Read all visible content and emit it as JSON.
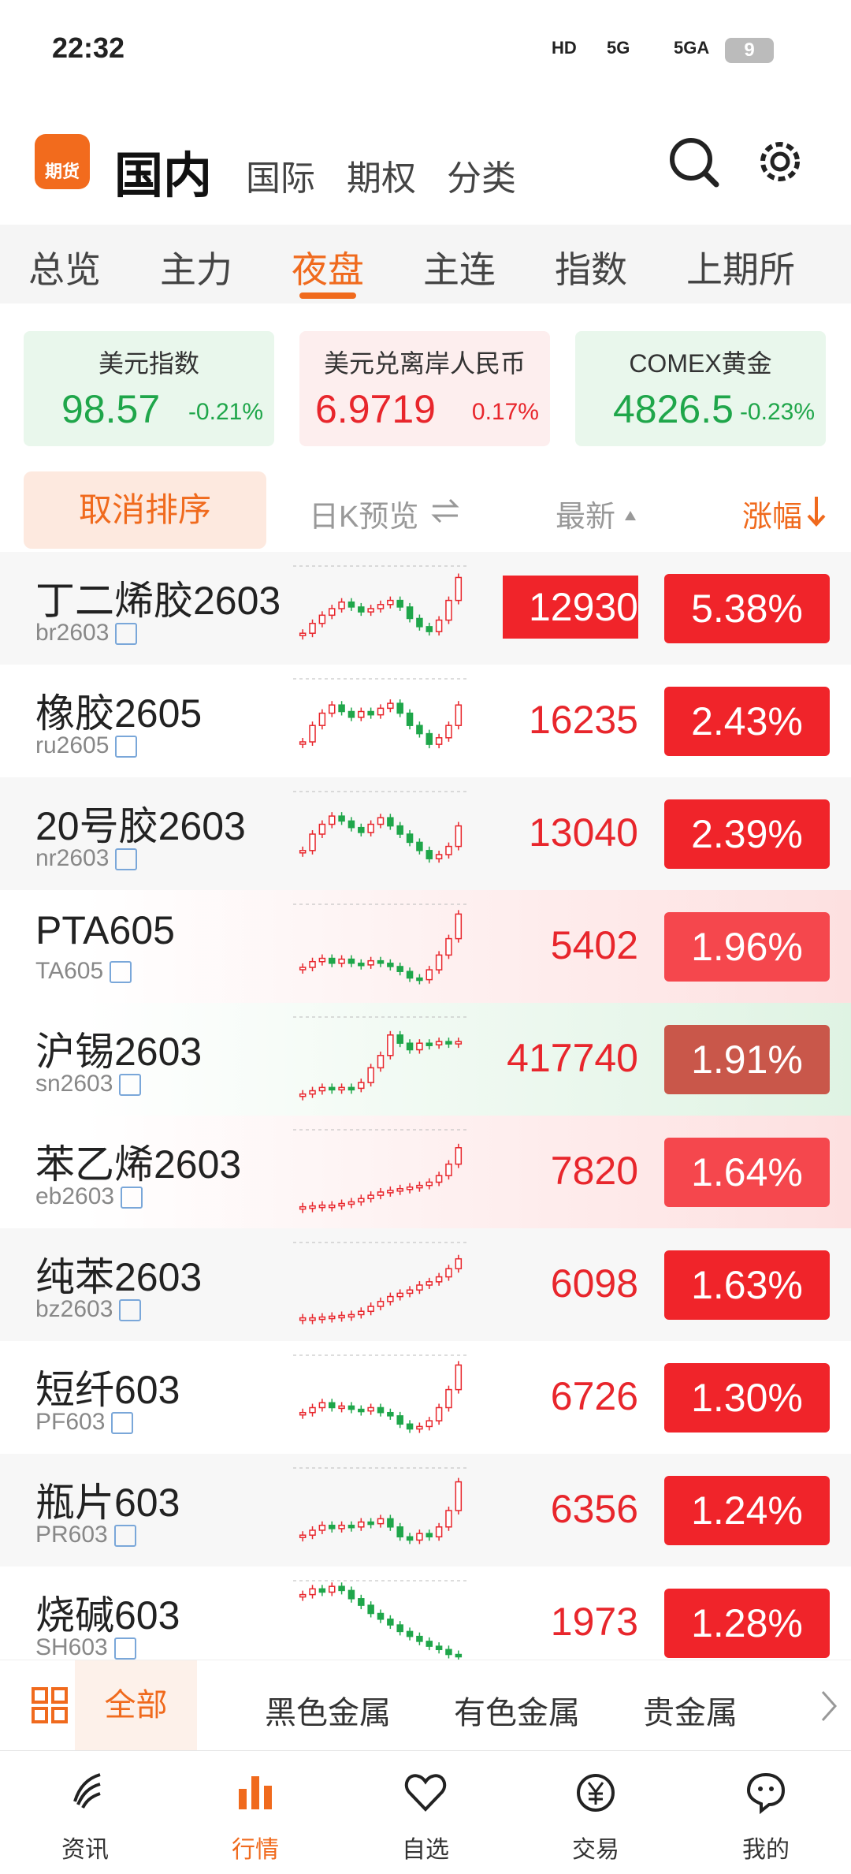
{
  "status_bar": {
    "time": "22:32",
    "network": [
      "HD",
      "5G",
      "5GA"
    ],
    "battery": "9"
  },
  "header": {
    "logo": "期货",
    "tabs": [
      "国内",
      "国际",
      "期权",
      "分类"
    ],
    "active": 0
  },
  "subtabs": {
    "items": [
      "总览",
      "主力",
      "夜盘",
      "主连",
      "指数",
      "上期所"
    ],
    "active": 2
  },
  "cards": [
    {
      "name": "美元指数",
      "value": "98.57",
      "change": "-0.21%",
      "tone": "green"
    },
    {
      "name": "美元兑离岸人民币",
      "value": "6.9719",
      "change": "0.17%",
      "tone": "red"
    },
    {
      "name": "COMEX黄金",
      "value": "4826.5",
      "change": "-0.23%",
      "tone": "green"
    }
  ],
  "sort_bar": {
    "cancel": "取消排序",
    "kline": "日K预览",
    "latest": "最新",
    "change": "涨幅"
  },
  "rows": [
    {
      "name": "丁二烯胶2603",
      "code": "br2603",
      "price": "12930",
      "change": "5.38%",
      "price_box": true,
      "badge_color": "#f0242a",
      "kline": [
        20,
        32,
        42,
        50,
        58,
        52,
        46,
        50,
        55,
        60,
        52,
        38,
        28,
        22,
        36,
        60,
        88
      ]
    },
    {
      "name": "橡胶2605",
      "code": "ru2605",
      "price": "16235",
      "change": "2.43%",
      "badge_color": "#f0242a",
      "kline": [
        25,
        45,
        60,
        70,
        62,
        55,
        62,
        58,
        66,
        72,
        60,
        45,
        35,
        22,
        30,
        45,
        70
      ]
    },
    {
      "name": "20号胶2603",
      "code": "nr2603",
      "price": "13040",
      "change": "2.39%",
      "badge_color": "#f0242a",
      "kline": [
        30,
        50,
        62,
        72,
        66,
        58,
        52,
        62,
        70,
        60,
        50,
        40,
        30,
        20,
        25,
        35,
        60
      ]
    },
    {
      "name": "PTA605",
      "code": "TA605",
      "price": "5402",
      "change": "1.96%",
      "tint": "red",
      "badge_color": "#f5474d",
      "kline": [
        25,
        32,
        36,
        30,
        35,
        30,
        28,
        33,
        30,
        26,
        20,
        12,
        10,
        22,
        40,
        60,
        90
      ]
    },
    {
      "name": "沪锡2603",
      "code": "sn2603",
      "price": "417740",
      "change": "1.91%",
      "tint": "green",
      "badge_color": "#c9574a",
      "kline": [
        8,
        12,
        16,
        14,
        16,
        15,
        22,
        40,
        55,
        80,
        70,
        62,
        70,
        68,
        72,
        70,
        72
      ]
    },
    {
      "name": "苯乙烯2603",
      "code": "eb2603",
      "price": "7820",
      "change": "1.64%",
      "tint": "red",
      "badge_color": "#f5474d",
      "kline": [
        8,
        9,
        10,
        10,
        12,
        14,
        18,
        22,
        26,
        28,
        30,
        32,
        34,
        38,
        46,
        60,
        80
      ]
    },
    {
      "name": "纯苯2603",
      "code": "bz2603",
      "price": "6098",
      "change": "1.63%",
      "badge_color": "#f0242a",
      "kline": [
        10,
        10,
        11,
        12,
        13,
        14,
        18,
        24,
        30,
        36,
        40,
        44,
        50,
        54,
        60,
        70,
        82
      ]
    },
    {
      "name": "短纤603",
      "code": "PF603",
      "price": "6726",
      "change": "1.30%",
      "badge_color": "#f0242a",
      "kline": [
        32,
        38,
        44,
        38,
        40,
        36,
        34,
        38,
        32,
        28,
        18,
        12,
        15,
        22,
        38,
        60,
        90
      ]
    },
    {
      "name": "瓶片603",
      "code": "PR603",
      "price": "6356",
      "change": "1.24%",
      "badge_color": "#f0242a",
      "kline": [
        20,
        26,
        32,
        28,
        32,
        30,
        36,
        34,
        40,
        30,
        18,
        14,
        22,
        18,
        30,
        50,
        85
      ]
    },
    {
      "name": "烧碱603",
      "code": "SH603",
      "price": "1973",
      "change": "1.28%",
      "badge_color": "#f0242a",
      "kline": [
        85,
        92,
        88,
        95,
        90,
        80,
        72,
        62,
        55,
        48,
        40,
        34,
        28,
        22,
        18,
        12,
        10
      ]
    }
  ],
  "categories": {
    "items": [
      "全部",
      "黑色金属",
      "有色金属",
      "贵金属"
    ],
    "active": 0
  },
  "nav": {
    "items": [
      "资讯",
      "行情",
      "自选",
      "交易",
      "我的"
    ],
    "active": 1
  }
}
